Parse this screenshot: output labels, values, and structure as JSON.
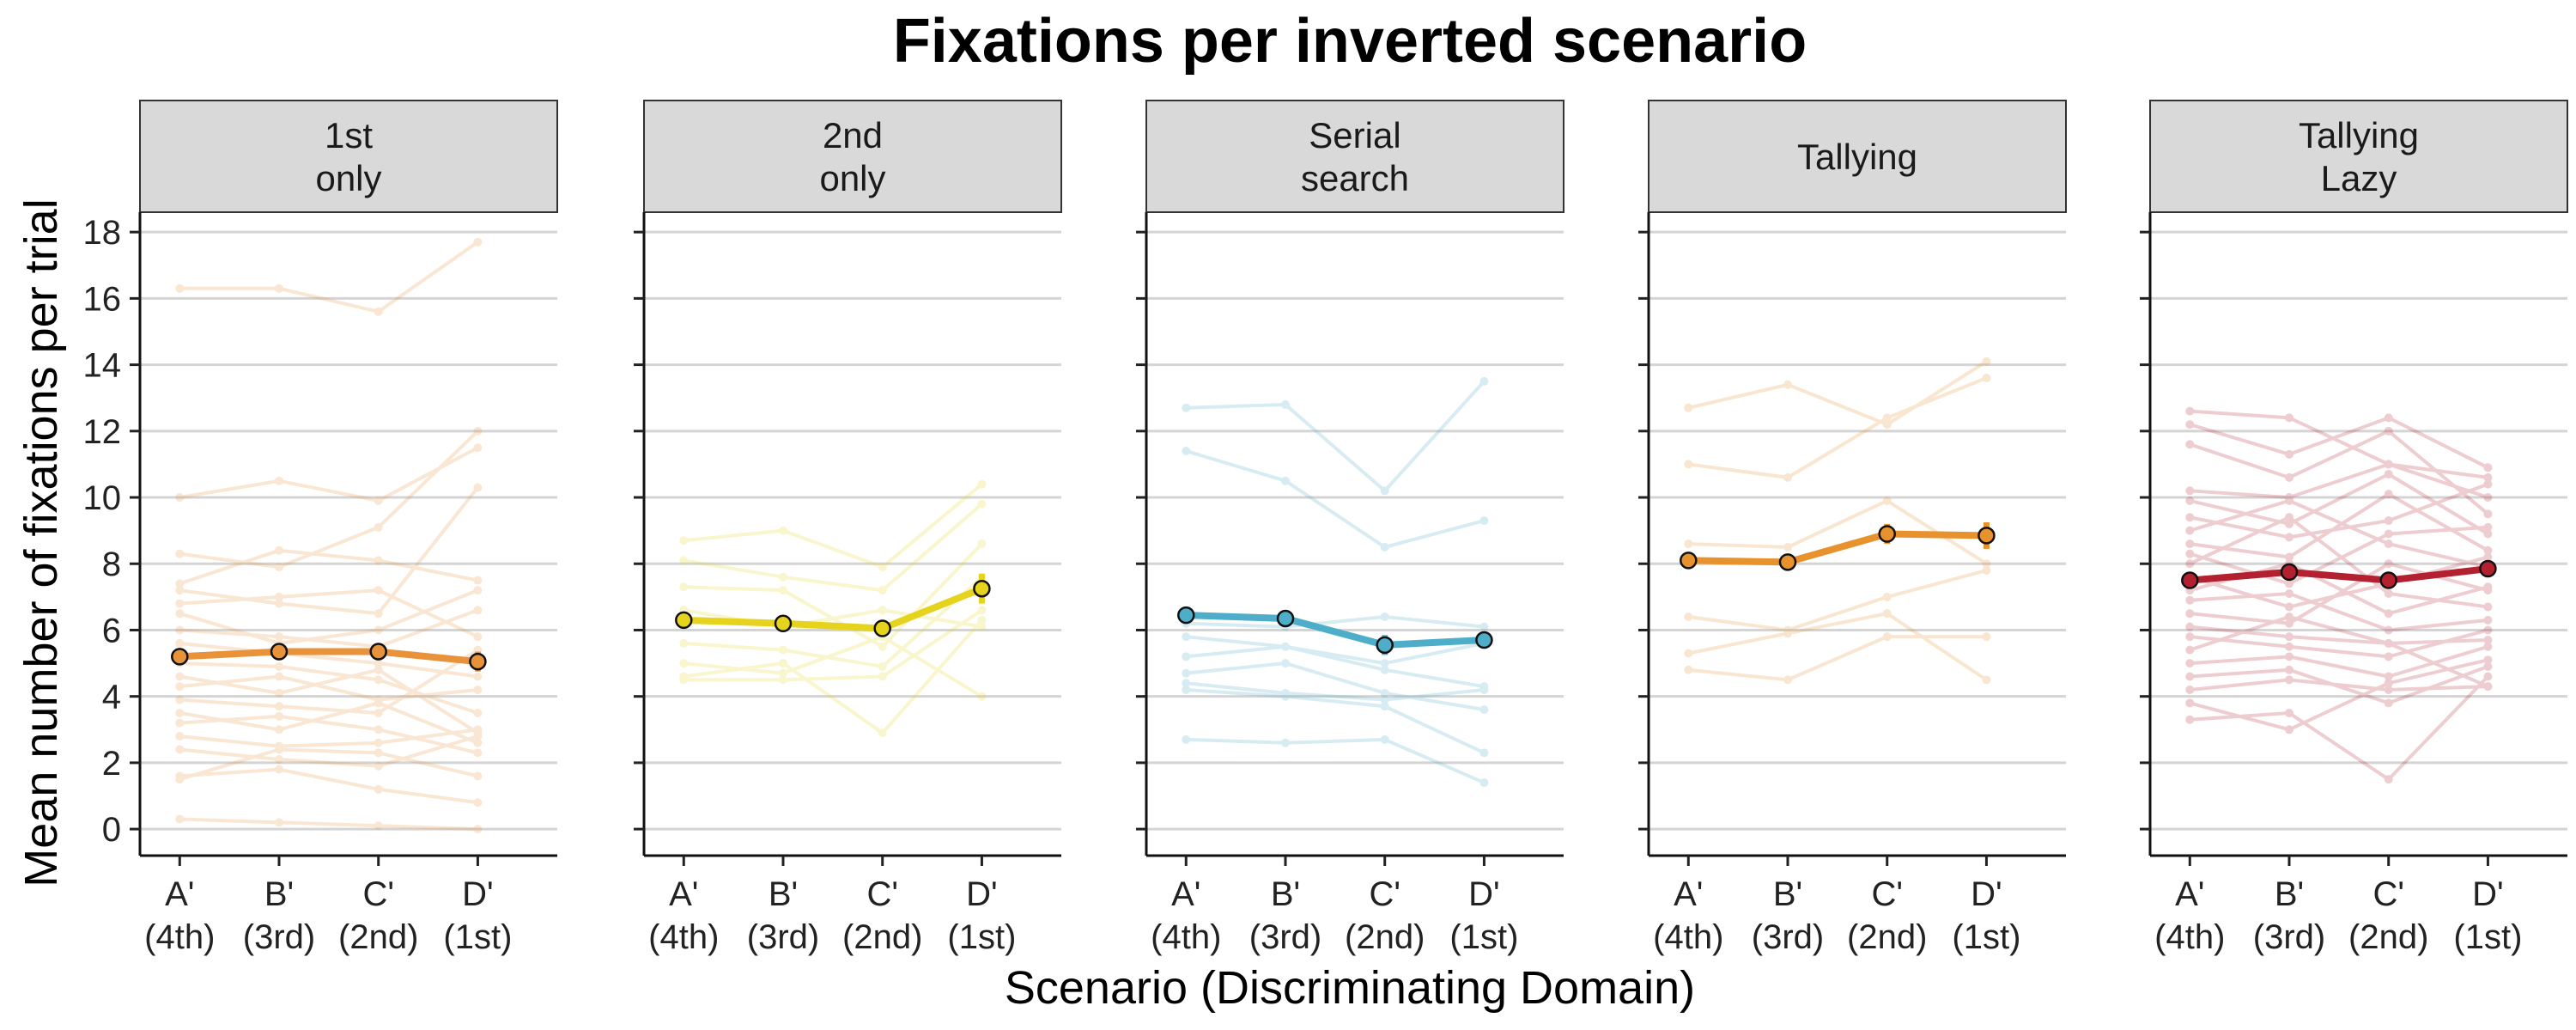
{
  "chart_data": {
    "type": "line",
    "title": "Fixations per inverted scenario",
    "xlabel": "Scenario (Discriminating Domain)",
    "ylabel": "Mean number of fixations per trial",
    "categories": [
      {
        "line1": "A'",
        "line2": "(4th)"
      },
      {
        "line1": "B'",
        "line2": "(3rd)"
      },
      {
        "line1": "C'",
        "line2": "(2nd)"
      },
      {
        "line1": "D'",
        "line2": "(1st)"
      }
    ],
    "ylim": [
      -0.8,
      18.6
    ],
    "yticks": [
      0,
      2,
      4,
      6,
      8,
      10,
      12,
      14,
      16,
      18
    ],
    "grid": "horizontal major",
    "panels": [
      {
        "label_lines": [
          "1st",
          "only"
        ],
        "color": "#E8923A",
        "mean": [
          5.2,
          5.35,
          5.35,
          5.05
        ],
        "error": [
          0.15,
          0.15,
          0.15,
          0.3
        ],
        "participants": [
          [
            16.3,
            16.3,
            15.6,
            17.7
          ],
          [
            10.0,
            10.5,
            9.9,
            11.5
          ],
          [
            8.3,
            7.9,
            9.1,
            12.0
          ],
          [
            7.4,
            8.4,
            8.1,
            7.5
          ],
          [
            7.2,
            6.8,
            6.5,
            10.3
          ],
          [
            6.8,
            7.0,
            7.2,
            5.8
          ],
          [
            6.5,
            5.6,
            6.0,
            7.2
          ],
          [
            6.0,
            5.8,
            5.5,
            6.6
          ],
          [
            5.6,
            5.3,
            5.0,
            4.6
          ],
          [
            5.0,
            4.9,
            4.5,
            3.5
          ],
          [
            4.6,
            4.1,
            4.8,
            2.9
          ],
          [
            4.3,
            4.6,
            3.9,
            4.2
          ],
          [
            3.9,
            3.7,
            3.5,
            5.4
          ],
          [
            3.5,
            3.0,
            3.8,
            2.6
          ],
          [
            3.2,
            3.4,
            3.0,
            2.3
          ],
          [
            2.8,
            2.5,
            2.6,
            3.0
          ],
          [
            2.4,
            2.1,
            1.9,
            2.8
          ],
          [
            1.6,
            1.8,
            1.2,
            0.8
          ],
          [
            1.5,
            2.4,
            2.3,
            1.6
          ],
          [
            0.3,
            0.2,
            0.1,
            0.0
          ]
        ]
      },
      {
        "label_lines": [
          "2nd",
          "only"
        ],
        "color": "#E6D31E",
        "mean": [
          6.3,
          6.2,
          6.05,
          7.25
        ],
        "error": [
          0.1,
          0.1,
          0.25,
          0.45
        ],
        "participants": [
          [
            8.7,
            9.0,
            7.9,
            10.4
          ],
          [
            8.1,
            7.6,
            7.2,
            9.8
          ],
          [
            7.3,
            7.2,
            5.5,
            8.6
          ],
          [
            6.6,
            6.1,
            6.6,
            6.1
          ],
          [
            5.6,
            5.4,
            4.9,
            7.6
          ],
          [
            5.0,
            4.7,
            5.8,
            4.0
          ],
          [
            4.6,
            5.0,
            2.9,
            6.3
          ],
          [
            4.5,
            4.5,
            4.6,
            6.6
          ]
        ]
      },
      {
        "label_lines": [
          "Serial",
          "search"
        ],
        "color": "#4EADC9",
        "mean": [
          6.45,
          6.35,
          5.55,
          5.7
        ],
        "error": [
          0.1,
          0.1,
          0.3,
          0.25
        ],
        "participants": [
          [
            12.7,
            12.8,
            10.2,
            13.5
          ],
          [
            11.4,
            10.5,
            8.5,
            9.3
          ],
          [
            6.2,
            6.1,
            6.4,
            6.1
          ],
          [
            5.8,
            5.5,
            5.0,
            5.6
          ],
          [
            5.2,
            5.5,
            4.8,
            4.3
          ],
          [
            4.7,
            5.0,
            4.1,
            3.6
          ],
          [
            4.4,
            4.1,
            3.9,
            4.2
          ],
          [
            4.2,
            4.0,
            3.7,
            2.3
          ],
          [
            2.7,
            2.6,
            2.7,
            1.4
          ]
        ]
      },
      {
        "label_lines": [
          "Tallying"
        ],
        "color": "#E8922E",
        "mean": [
          8.1,
          8.05,
          8.9,
          8.85
        ],
        "error": [
          0.1,
          0.2,
          0.3,
          0.4
        ],
        "participants": [
          [
            12.7,
            13.4,
            12.2,
            14.1
          ],
          [
            11.0,
            10.6,
            12.4,
            13.6
          ],
          [
            8.6,
            8.5,
            9.9,
            8.0
          ],
          [
            6.4,
            6.0,
            7.0,
            7.8
          ],
          [
            5.3,
            5.9,
            6.5,
            4.5
          ],
          [
            4.8,
            4.5,
            5.8,
            5.8
          ]
        ]
      },
      {
        "label_lines": [
          "Tallying",
          "Lazy"
        ],
        "color": "#B3202F",
        "mean": [
          7.5,
          7.75,
          7.5,
          7.85
        ],
        "error": [
          0.1,
          0.1,
          0.1,
          0.1
        ],
        "participants": [
          [
            12.6,
            12.4,
            11.0,
            10.6
          ],
          [
            12.2,
            11.3,
            12.4,
            10.9
          ],
          [
            11.6,
            10.6,
            12.0,
            9.5
          ],
          [
            10.2,
            10.0,
            11.0,
            10.0
          ],
          [
            9.9,
            9.2,
            10.7,
            8.9
          ],
          [
            9.4,
            8.8,
            9.3,
            10.4
          ],
          [
            9.0,
            9.9,
            8.6,
            7.9
          ],
          [
            8.6,
            8.2,
            10.1,
            8.4
          ],
          [
            8.3,
            7.4,
            8.9,
            9.1
          ],
          [
            8.0,
            9.4,
            7.1,
            6.7
          ],
          [
            7.6,
            6.7,
            7.4,
            8.2
          ],
          [
            7.2,
            8.0,
            6.5,
            7.3
          ],
          [
            6.9,
            7.1,
            6.0,
            6.3
          ],
          [
            6.5,
            6.2,
            8.0,
            7.2
          ],
          [
            6.1,
            5.8,
            5.6,
            5.7
          ],
          [
            5.8,
            5.5,
            5.2,
            6.0
          ],
          [
            5.4,
            6.4,
            5.6,
            4.3
          ],
          [
            5.0,
            5.2,
            4.6,
            5.5
          ],
          [
            4.6,
            4.8,
            3.8,
            4.9
          ],
          [
            4.2,
            4.5,
            4.2,
            4.3
          ],
          [
            3.8,
            3.0,
            4.4,
            5.1
          ],
          [
            3.3,
            3.5,
            1.5,
            4.6
          ]
        ]
      }
    ]
  }
}
